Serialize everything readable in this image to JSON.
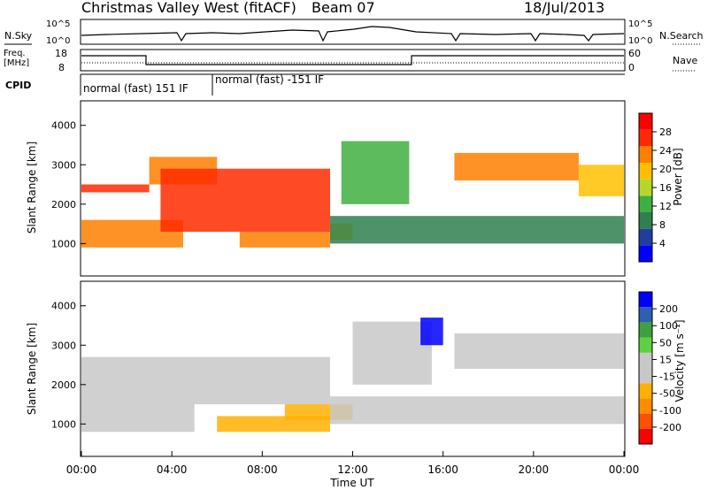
{
  "header": {
    "station": "Christmas Valley West (fitACF)",
    "beam": "Beam 07",
    "date": "18/Jul/2013"
  },
  "top_panels": {
    "nsky_label": "N.Sky",
    "nsky_ticks": [
      "10^5",
      "10^0"
    ],
    "nsearch_label": "N.Search",
    "nsearch_ticks": [
      "10^5",
      "10^0"
    ],
    "freq_label": "Freq.",
    "freq_unit": "[MHz]",
    "freq_ticks": [
      "18",
      "8"
    ],
    "nave_label": "Nave",
    "nave_ticks": [
      "60",
      "0"
    ],
    "cpid_label": "CPID",
    "cpid_segments": [
      "normal (fast) 151 IF",
      "normal (fast) -151 IF"
    ]
  },
  "colors": {
    "power": [
      "#0000ff",
      "#1f3fa0",
      "#2f7f4f",
      "#3faf3f",
      "#b8d62a",
      "#ffbf00",
      "#ff7f00",
      "#ff2a00",
      "#ff0000"
    ],
    "velocity": [
      "#ff0000",
      "#ff5000",
      "#ff8c00",
      "#ffb000",
      "#c8c8c8",
      "#c8c8c8",
      "#5fd03f",
      "#3fa03f",
      "#2f5fb0",
      "#0000ff"
    ]
  },
  "chart_data": [
    {
      "type": "heatmap",
      "panel": "power",
      "ylabel": "Slant Range [km]",
      "y_ticks": [
        "4000",
        "3000",
        "2000",
        "1000"
      ],
      "ylim": [
        200,
        4600
      ],
      "xlim": [
        "00:00",
        "24:00"
      ],
      "colorbar_label": "Power [dB]",
      "colorbar_ticks": [
        "28",
        "24",
        "20",
        "16",
        "12",
        "8",
        "4"
      ],
      "colorbar_range": [
        0,
        32
      ],
      "bands": [
        {
          "t_start": 0.0,
          "t_end": 3.0,
          "range_km": [
            2300,
            2500
          ],
          "value": 26
        },
        {
          "t_start": 3.0,
          "t_end": 6.0,
          "range_km": [
            2500,
            3200
          ],
          "value": 22
        },
        {
          "t_start": 0.0,
          "t_end": 4.5,
          "range_km": [
            900,
            1600
          ],
          "value": 22
        },
        {
          "t_start": 3.5,
          "t_end": 11.0,
          "range_km": [
            1300,
            2900
          ],
          "value": 28
        },
        {
          "t_start": 7.0,
          "t_end": 11.0,
          "range_km": [
            900,
            1300
          ],
          "value": 24
        },
        {
          "t_start": 11.0,
          "t_end": 12.0,
          "range_km": [
            1100,
            1500
          ],
          "value": 20
        },
        {
          "t_start": 11.5,
          "t_end": 14.5,
          "range_km": [
            2000,
            3600
          ],
          "value": 12
        },
        {
          "t_start": 11.0,
          "t_end": 24.0,
          "range_km": [
            1000,
            1700
          ],
          "value": 10
        },
        {
          "t_start": 16.5,
          "t_end": 22.0,
          "range_km": [
            2600,
            3300
          ],
          "value": 22
        },
        {
          "t_start": 22.0,
          "t_end": 24.0,
          "range_km": [
            2200,
            3000
          ],
          "value": 18
        }
      ]
    },
    {
      "type": "heatmap",
      "panel": "velocity",
      "ylabel": "Slant Range [km]",
      "xlabel": "Time UT",
      "y_ticks": [
        "4000",
        "3000",
        "2000",
        "1000"
      ],
      "x_ticks": [
        "00:00",
        "04:00",
        "08:00",
        "12:00",
        "16:00",
        "20:00",
        "00:00"
      ],
      "ylim": [
        200,
        4600
      ],
      "xlim": [
        "00:00",
        "24:00"
      ],
      "colorbar_label": "Velocity [m s⁻¹]",
      "colorbar_ticks": [
        "200",
        "100",
        "50",
        "15",
        "-15",
        "-50",
        "-100",
        "-200"
      ],
      "colorbar_range": [
        -250,
        250
      ],
      "bands": [
        {
          "t_start": 0.0,
          "t_end": 11.0,
          "range_km": [
            1500,
            2700
          ],
          "value": 0
        },
        {
          "t_start": 0.0,
          "t_end": 5.0,
          "range_km": [
            800,
            1500
          ],
          "value": 0
        },
        {
          "t_start": 6.0,
          "t_end": 11.0,
          "range_km": [
            800,
            1200
          ],
          "value": -80
        },
        {
          "t_start": 9.0,
          "t_end": 12.0,
          "range_km": [
            1100,
            1500
          ],
          "value": -80
        },
        {
          "t_start": 12.0,
          "t_end": 15.5,
          "range_km": [
            2000,
            3600
          ],
          "value": 40
        },
        {
          "t_start": 15.0,
          "t_end": 16.0,
          "range_km": [
            3000,
            3700
          ],
          "value": 200
        },
        {
          "t_start": 16.5,
          "t_end": 24.0,
          "range_km": [
            2400,
            3300
          ],
          "value": 0
        },
        {
          "t_start": 11.0,
          "t_end": 24.0,
          "range_km": [
            1000,
            1700
          ],
          "value": 0
        }
      ]
    }
  ]
}
